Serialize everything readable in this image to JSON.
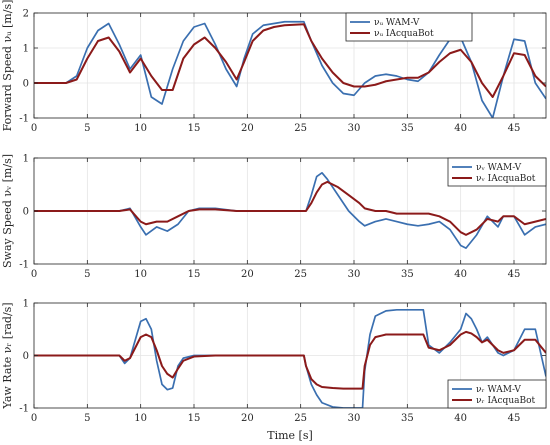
{
  "chart_data": [
    {
      "type": "line",
      "ylabel": "Forward Speed νᵤ [m/s]",
      "xlim": [
        0,
        48
      ],
      "ylim": [
        -1,
        2
      ],
      "xticks": [
        0,
        5,
        10,
        15,
        20,
        25,
        30,
        35,
        40,
        45
      ],
      "yticks": [
        -1,
        0,
        1,
        2
      ],
      "grid": true,
      "legend": "top-right",
      "colors": [
        "#3a6fb0",
        "#8b1a1a"
      ],
      "series": [
        {
          "name": "νᵤ WAM-V",
          "x": [
            0,
            3,
            4,
            5,
            6,
            7,
            8,
            9,
            10,
            11,
            12,
            13,
            14,
            15,
            16,
            17,
            18,
            19,
            19.7,
            20.5,
            21.5,
            22.5,
            23.5,
            25.3,
            26,
            27,
            28,
            29,
            30,
            31,
            32,
            33,
            34,
            35,
            36,
            37,
            38,
            39,
            40,
            41,
            42,
            43,
            44,
            45,
            46,
            47,
            48
          ],
          "y": [
            0,
            0,
            0.2,
            1.0,
            1.5,
            1.7,
            1.1,
            0.4,
            0.8,
            -0.4,
            -0.6,
            0.4,
            1.2,
            1.6,
            1.7,
            1.1,
            0.4,
            -0.1,
            0.7,
            1.4,
            1.65,
            1.7,
            1.75,
            1.75,
            1.2,
            0.5,
            0.0,
            -0.3,
            -0.35,
            0.0,
            0.2,
            0.25,
            0.2,
            0.1,
            0.05,
            0.3,
            0.8,
            1.25,
            1.3,
            0.6,
            -0.5,
            -1.0,
            0.2,
            1.25,
            1.2,
            0.0,
            -0.45
          ]
        },
        {
          "name": "νᵤ IAcquaBot",
          "x": [
            0,
            3,
            4,
            5,
            6,
            7,
            8,
            9,
            10,
            11,
            12,
            13,
            14,
            15,
            16,
            17,
            18,
            19,
            19.7,
            20.5,
            21.5,
            22.5,
            23.5,
            25.3,
            26,
            27,
            28,
            29,
            30,
            31,
            32,
            33,
            34,
            35,
            36,
            37,
            38,
            39,
            40,
            41,
            42,
            43,
            44,
            45,
            46,
            47,
            48
          ],
          "y": [
            0,
            0,
            0.1,
            0.7,
            1.2,
            1.3,
            0.9,
            0.3,
            0.7,
            0.2,
            -0.2,
            -0.2,
            0.7,
            1.1,
            1.3,
            1.0,
            0.6,
            0.1,
            0.6,
            1.2,
            1.5,
            1.6,
            1.65,
            1.68,
            1.2,
            0.7,
            0.3,
            0.0,
            -0.1,
            -0.1,
            -0.05,
            0.05,
            0.1,
            0.15,
            0.15,
            0.3,
            0.6,
            0.85,
            0.95,
            0.6,
            0.0,
            -0.4,
            0.2,
            0.85,
            0.8,
            0.2,
            -0.1
          ]
        }
      ]
    },
    {
      "type": "line",
      "ylabel": "Sway Speed νᵥ [m/s]",
      "xlim": [
        0,
        48
      ],
      "ylim": [
        -1,
        1
      ],
      "xticks": [
        0,
        5,
        10,
        15,
        20,
        25,
        30,
        35,
        40,
        45
      ],
      "yticks": [
        -1,
        0,
        1
      ],
      "grid": true,
      "legend": "top-right",
      "colors": [
        "#3a6fb0",
        "#8b1a1a"
      ],
      "series": [
        {
          "name": "νᵥ WAM-V",
          "x": [
            0,
            8,
            9,
            10,
            10.5,
            11.5,
            12.5,
            13.5,
            14.5,
            15.5,
            17,
            19,
            21,
            23,
            25.5,
            26,
            26.5,
            27,
            27.5,
            28.5,
            29.5,
            30.5,
            31,
            32,
            33,
            34,
            35,
            36,
            37,
            38,
            39,
            40,
            40.5,
            41.5,
            42.5,
            43.5,
            44,
            45,
            46,
            47,
            48
          ],
          "y": [
            0,
            0,
            0.05,
            -0.3,
            -0.45,
            -0.3,
            -0.38,
            -0.25,
            0.0,
            0.05,
            0.05,
            0.0,
            0.0,
            0.0,
            0.0,
            0.3,
            0.65,
            0.72,
            0.6,
            0.3,
            0.0,
            -0.2,
            -0.28,
            -0.2,
            -0.15,
            -0.2,
            -0.25,
            -0.28,
            -0.25,
            -0.2,
            -0.35,
            -0.65,
            -0.7,
            -0.45,
            -0.1,
            -0.3,
            -0.1,
            -0.1,
            -0.45,
            -0.3,
            -0.25
          ]
        },
        {
          "name": "νᵥ IAcquaBot",
          "x": [
            0,
            8,
            9,
            10,
            10.5,
            11.5,
            12.5,
            13.5,
            14.5,
            15.5,
            17,
            19,
            21,
            23,
            25.5,
            26,
            26.5,
            27,
            27.5,
            28.5,
            29.5,
            30.5,
            31,
            32,
            33,
            34,
            35,
            36,
            37,
            38,
            39,
            40,
            40.5,
            41.5,
            42.5,
            43.5,
            44,
            45,
            46,
            47,
            48
          ],
          "y": [
            0,
            0,
            0.03,
            -0.2,
            -0.25,
            -0.2,
            -0.2,
            -0.1,
            0.0,
            0.03,
            0.03,
            0.0,
            0.0,
            0.0,
            0.0,
            0.15,
            0.35,
            0.5,
            0.55,
            0.45,
            0.3,
            0.15,
            0.05,
            0.0,
            0.0,
            -0.05,
            -0.05,
            -0.05,
            -0.05,
            -0.1,
            -0.2,
            -0.4,
            -0.45,
            -0.35,
            -0.15,
            -0.2,
            -0.1,
            -0.1,
            -0.25,
            -0.2,
            -0.15
          ]
        }
      ]
    },
    {
      "type": "line",
      "xlabel": "Time [s]",
      "ylabel": "Yaw Rate νᵣ [rad/s]",
      "xlim": [
        0,
        48
      ],
      "ylim": [
        -1,
        1
      ],
      "xticks": [
        0,
        5,
        10,
        15,
        20,
        25,
        30,
        35,
        40,
        45
      ],
      "yticks": [
        -1,
        0,
        1
      ],
      "grid": true,
      "legend": "bottom-right",
      "colors": [
        "#3a6fb0",
        "#8b1a1a"
      ],
      "series": [
        {
          "name": "νᵣ WAM-V",
          "x": [
            0,
            8,
            8.5,
            9,
            9.5,
            10,
            10.5,
            11,
            11.5,
            12,
            12.5,
            13,
            13.5,
            14,
            15,
            17,
            20,
            25.3,
            25.5,
            26,
            26.5,
            27,
            28,
            29,
            30,
            30.8,
            31,
            31.5,
            32,
            33,
            34,
            35,
            36,
            36.5,
            37,
            38,
            39,
            40,
            40.5,
            41,
            41.5,
            42,
            42.5,
            43,
            43.5,
            44,
            45,
            46,
            47,
            48
          ],
          "y": [
            0,
            0,
            -0.15,
            -0.05,
            0.3,
            0.65,
            0.7,
            0.5,
            -0.1,
            -0.55,
            -0.65,
            -0.62,
            -0.2,
            -0.05,
            0.0,
            0.0,
            0.0,
            0.0,
            -0.2,
            -0.55,
            -0.75,
            -0.9,
            -0.98,
            -1.0,
            -1.0,
            -1.0,
            -0.3,
            0.4,
            0.75,
            0.85,
            0.87,
            0.87,
            0.87,
            0.87,
            0.2,
            0.05,
            0.25,
            0.5,
            0.8,
            0.7,
            0.5,
            0.25,
            0.35,
            0.2,
            0.05,
            0.0,
            0.1,
            0.5,
            0.5,
            -0.4
          ]
        },
        {
          "name": "νᵣ IAcquaBot",
          "x": [
            0,
            8,
            8.5,
            9,
            9.5,
            10,
            10.5,
            11,
            11.5,
            12,
            12.5,
            13,
            13.5,
            14,
            15,
            17,
            20,
            25.3,
            25.5,
            26,
            26.5,
            27,
            28,
            29,
            30,
            30.8,
            31,
            31.5,
            32,
            33,
            34,
            35,
            36,
            36.5,
            37,
            38,
            39,
            40,
            40.5,
            41,
            41.5,
            42,
            42.5,
            43,
            43.5,
            44,
            45,
            46,
            47,
            48
          ],
          "y": [
            0,
            0,
            -0.1,
            -0.05,
            0.15,
            0.35,
            0.4,
            0.35,
            0.1,
            -0.2,
            -0.35,
            -0.42,
            -0.25,
            -0.1,
            -0.02,
            0.0,
            0.0,
            0.0,
            -0.2,
            -0.45,
            -0.55,
            -0.6,
            -0.62,
            -0.63,
            -0.63,
            -0.63,
            -0.2,
            0.2,
            0.35,
            0.4,
            0.4,
            0.4,
            0.4,
            0.4,
            0.15,
            0.1,
            0.2,
            0.4,
            0.45,
            0.42,
            0.35,
            0.25,
            0.3,
            0.2,
            0.1,
            0.05,
            0.1,
            0.3,
            0.3,
            0.05
          ]
        }
      ]
    }
  ]
}
